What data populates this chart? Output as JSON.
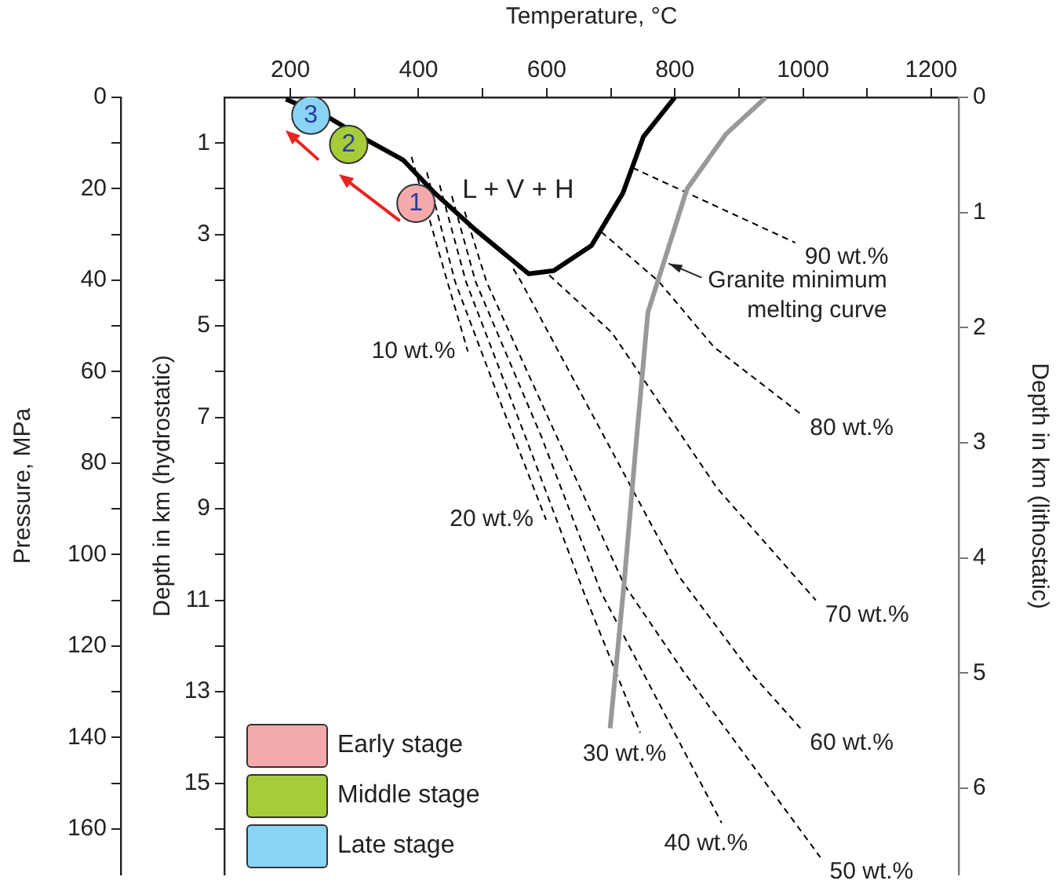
{
  "chart_data": {
    "type": "line",
    "xlabel": "Temperature, °C",
    "ylabel": "Pressure, MPa",
    "y2label": "Depth in km (hydrostatic)",
    "y3label": "Depth in km (lithostatic)",
    "xlim": [
      97,
      1243
    ],
    "ylim": [
      170,
      0
    ],
    "y2lim": [
      17,
      0
    ],
    "y3lim": [
      6.75,
      0
    ],
    "xticks": [
      200,
      {
        "value": 300,
        "label": null
      },
      400,
      {
        "value": 500,
        "label": null
      },
      600,
      {
        "value": 700,
        "label": null
      },
      800,
      {
        "value": 900,
        "label": null
      },
      1000,
      {
        "value": 1100,
        "label": null
      },
      1200
    ],
    "yticks": [
      0,
      {
        "value": 10,
        "label": null
      },
      20,
      {
        "value": 30,
        "label": null
      },
      40,
      {
        "value": 50,
        "label": null
      },
      60,
      {
        "value": 70,
        "label": null
      },
      80,
      {
        "value": 90,
        "label": null
      },
      100,
      {
        "value": 110,
        "label": null
      },
      120,
      {
        "value": 130,
        "label": null
      },
      140,
      {
        "value": 150,
        "label": null
      },
      160
    ],
    "y2ticks": [
      1,
      {
        "value": 2,
        "label": null
      },
      3,
      {
        "value": 4,
        "label": null
      },
      5,
      {
        "value": 6,
        "label": null
      },
      7,
      {
        "value": 8,
        "label": null
      },
      9,
      {
        "value": 10,
        "label": null
      },
      11,
      {
        "value": 12,
        "label": null
      },
      13,
      {
        "value": 14,
        "label": null
      },
      15,
      {
        "value": 16,
        "label": null
      }
    ],
    "y3ticks": [
      0,
      1,
      2,
      3,
      4,
      5,
      6
    ],
    "grid": false,
    "legend": "bottom left",
    "marker": "none",
    "series": [
      {
        "type": "line",
        "color": "#000000",
        "line_style": "solid",
        "x": [
          193,
          261,
          310,
          376,
          425,
          489,
          572,
          611,
          670,
          719,
          751,
          800
        ],
        "values": [
          0.4,
          4.5,
          8.6,
          13.7,
          20.9,
          29,
          38.6,
          37.9,
          32.4,
          20.9,
          8.6,
          0
        ]
      },
      {
        "type": "line",
        "color": "#999999",
        "line_style": "solid",
        "x": [
          942,
          880,
          819,
          783,
          758,
          740,
          721,
          699
        ],
        "values": [
          0,
          8,
          20,
          36,
          47,
          75,
          106,
          138
        ]
      },
      {
        "type": "line",
        "name": "10 wt.%",
        "color": "#000000",
        "line_style": "dashed",
        "x": [
          389,
          445,
          477
        ],
        "values": [
          13,
          40.3,
          55.6
        ]
      },
      {
        "type": "line",
        "name": "20 wt.%",
        "color": "#000000",
        "line_style": "dashed",
        "x": [
          413,
          457,
          530,
          599
        ],
        "values": [
          16.4,
          40.3,
          67.5,
          92.4
        ]
      },
      {
        "type": "line",
        "name": "30 wt.%",
        "color": "#000000",
        "line_style": "dashed",
        "x": [
          433,
          474,
          567,
          658,
          746
        ],
        "values": [
          19.2,
          40.3,
          74.3,
          108.3,
          139
        ]
      },
      {
        "type": "line",
        "name": "40 wt.%",
        "color": "#000000",
        "line_style": "dashed",
        "x": [
          452,
          489,
          592,
          685,
          873
        ],
        "values": [
          21.6,
          40.3,
          74.3,
          108.3,
          158.7
        ]
      },
      {
        "type": "line",
        "name": "50 wt.%",
        "color": "#000000",
        "line_style": "dashed",
        "x": [
          472,
          506,
          616,
          721,
          812,
          1027
        ],
        "values": [
          25,
          40.3,
          74.3,
          106.6,
          125.3,
          166.2
        ]
      },
      {
        "type": "line",
        "name": "60 wt.%",
        "color": "#000000",
        "line_style": "dashed",
        "x": [
          548,
          560,
          677,
          807,
          922,
          996
        ],
        "values": [
          37.5,
          40.3,
          70.9,
          104.9,
          126.4,
          138
        ]
      },
      {
        "type": "line",
        "name": "70 wt.%",
        "color": "#000000",
        "line_style": "dashed",
        "x": [
          604,
          702,
          866,
          1020
        ],
        "values": [
          38.9,
          51.5,
          85.5,
          110
        ]
      },
      {
        "type": "line",
        "name": "80 wt.%",
        "color": "#000000",
        "line_style": "dashed",
        "x": [
          685,
          775,
          861,
          996
        ],
        "values": [
          29.4,
          40.3,
          54.6,
          69.2
        ]
      },
      {
        "type": "line",
        "name": "90 wt.%",
        "color": "#000000",
        "line_style": "dashed",
        "x": [
          734,
          988
        ],
        "values": [
          15.4,
          31.8
        ]
      },
      {
        "type": "scatter",
        "name": "Early stage",
        "color": "#f4a9ab",
        "marker": "circle",
        "x": [
          396
        ],
        "values": [
          23.2
        ]
      },
      {
        "type": "scatter",
        "name": "Middle stage",
        "color": "#a6cd39",
        "marker": "circle",
        "x": [
          291
        ],
        "values": [
          10.3
        ]
      },
      {
        "type": "scatter",
        "name": "Late stage",
        "color": "#89d4f5",
        "marker": "circle",
        "x": [
          232
        ],
        "values": [
          3.9
        ]
      }
    ],
    "annotations": [
      "L + V + H",
      {
        "text": "1",
        "x": 396,
        "y": 23.2
      },
      {
        "text": "2",
        "x": 291,
        "y": 10.3
      },
      {
        "text": "3",
        "x": 232,
        "y": 3.9
      },
      {
        "text": "Granite minimum melting curve",
        "x": 783,
        "y": 36
      }
    ]
  }
}
